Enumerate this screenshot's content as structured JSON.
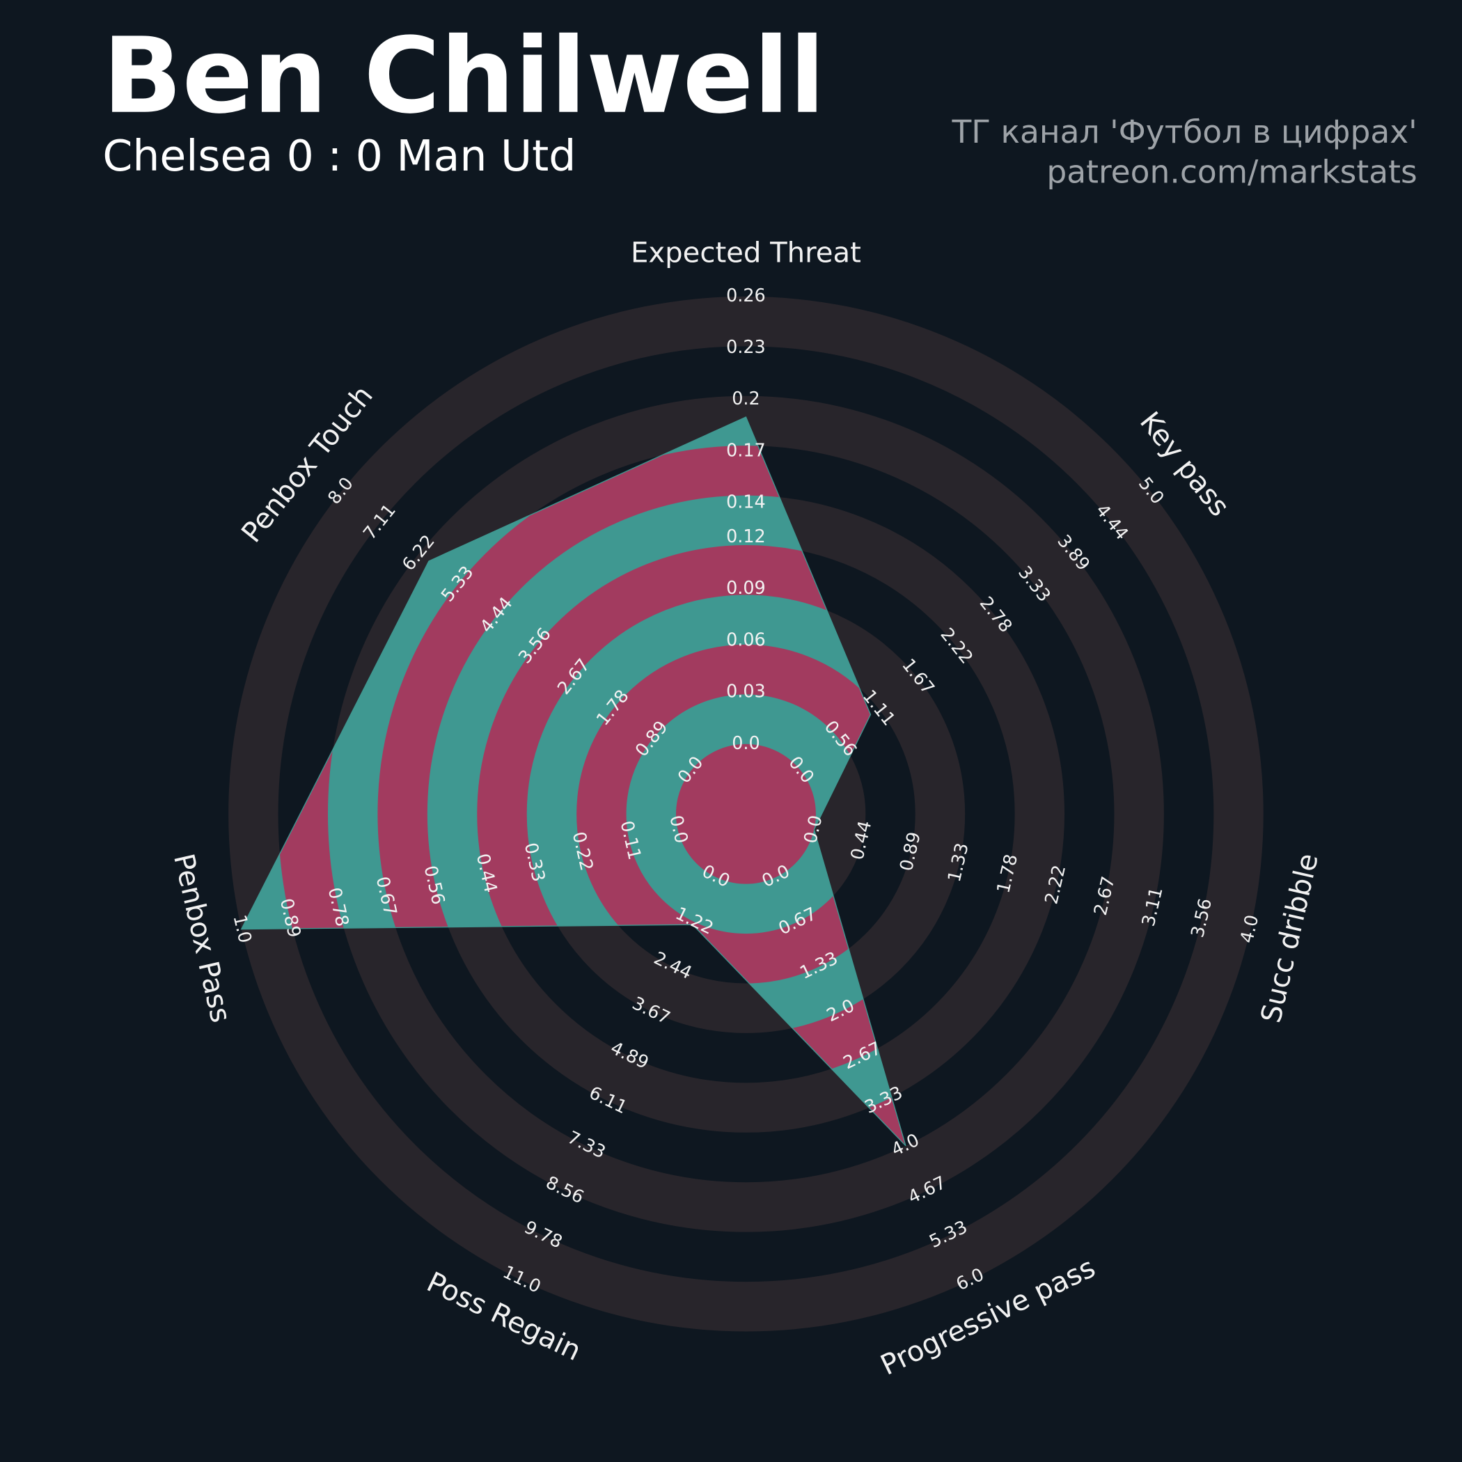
{
  "chart_data": {
    "type": "radar",
    "title": "Ben Chilwell",
    "subtitle": "Chelsea 0 : 0 Man Utd",
    "credits": [
      "ТГ канал 'Футбол в цифрах'",
      "patreon.com/markstats"
    ],
    "categories": [
      "Expected Threat",
      "Key pass",
      "Succ dribble",
      "Progressive pass",
      "Poss Regain",
      "Penbox Pass",
      "Penbox Touch"
    ],
    "values": [
      0.19,
      1.0,
      0,
      4.0,
      1.3,
      1.0,
      6.0
    ],
    "lims": [
      [
        0,
        0.26
      ],
      [
        0,
        5
      ],
      [
        0,
        4
      ],
      [
        0,
        6
      ],
      [
        0,
        11
      ],
      [
        0,
        1
      ],
      [
        0,
        8
      ]
    ],
    "ticks": [
      [
        {
          "value": 0,
          "label": "0.0"
        },
        0.03,
        0.06,
        0.09,
        0.12,
        0.14,
        0.17,
        0.2,
        0.23,
        0.26
      ],
      [
        {
          "value": 0,
          "label": "0.0"
        },
        0.56,
        1.11,
        1.67,
        2.22,
        2.78,
        3.33,
        3.89,
        4.44,
        {
          "value": 5,
          "label": "5.0"
        }
      ],
      [
        {
          "value": 0,
          "label": "0.0"
        },
        0.44,
        0.89,
        1.33,
        1.78,
        2.22,
        2.67,
        3.11,
        3.56,
        {
          "value": 4,
          "label": "4.0"
        }
      ],
      [
        {
          "value": 0,
          "label": "0.0"
        },
        0.67,
        1.33,
        {
          "value": 2,
          "label": "2.0"
        },
        2.67,
        3.33,
        {
          "value": 4,
          "label": "4.0"
        },
        4.67,
        5.33,
        {
          "value": 6,
          "label": "6.0"
        }
      ],
      [
        {
          "value": 0,
          "label": "0.0"
        },
        1.22,
        2.44,
        3.67,
        4.89,
        6.11,
        7.33,
        8.56,
        9.78,
        {
          "value": 11,
          "label": "11.0"
        }
      ],
      [
        {
          "value": 0,
          "label": "0.0"
        },
        0.11,
        0.22,
        0.33,
        0.44,
        0.56,
        0.67,
        0.78,
        0.89,
        {
          "value": 1,
          "label": "1.0"
        }
      ],
      [
        {
          "value": 0,
          "label": "0.0"
        },
        0.89,
        1.78,
        2.67,
        3.56,
        4.44,
        5.33,
        6.22,
        7.11,
        {
          "value": 8,
          "label": "8.0"
        }
      ]
    ],
    "color": "#3f9891",
    "ring_color": "#a23b5f",
    "disk_color": "#28252b",
    "background": "#0e1720"
  }
}
